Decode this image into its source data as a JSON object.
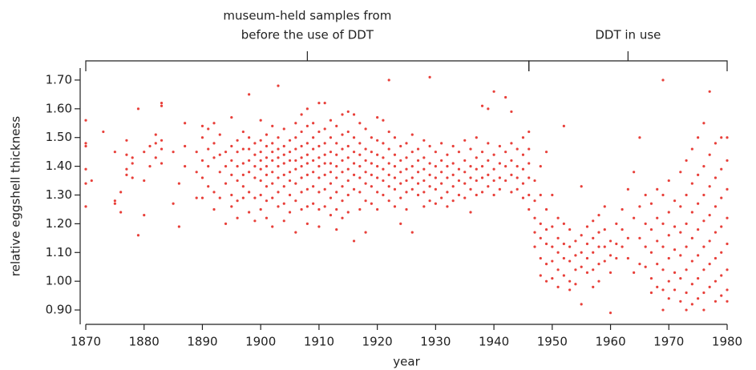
{
  "chart_data": {
    "type": "scatter",
    "xlabel": "year",
    "ylabel": "relative eggshell thickness",
    "color": "#e8403a",
    "xlim": [
      1870,
      1980
    ],
    "xticks": [
      1870,
      1880,
      1890,
      1900,
      1910,
      1920,
      1930,
      1940,
      1950,
      1960,
      1970,
      1980
    ],
    "ylim": [
      0.85,
      1.75
    ],
    "yticks": [
      {
        "value": 0.9,
        "label": "0.90"
      },
      {
        "value": 1.0,
        "label": "1.00"
      },
      {
        "value": 1.1,
        "label": "1.10"
      },
      {
        "value": 1.2,
        "label": "1.20"
      },
      {
        "value": 1.3,
        "label": "1.30"
      },
      {
        "value": 1.4,
        "label": "1.40"
      },
      {
        "value": 1.5,
        "label": "1.50"
      },
      {
        "value": 1.6,
        "label": "1.60"
      },
      {
        "value": 1.7,
        "label": "1.70"
      }
    ],
    "annotations": [
      {
        "lines": [
          "museum-held samples from",
          "before the use of DDT"
        ],
        "x_range": [
          1870,
          1946
        ]
      },
      {
        "lines": [
          "DDT in use"
        ],
        "x_range": [
          1946,
          1980
        ]
      }
    ],
    "x": [
      1870,
      1871,
      1873,
      1875,
      1876,
      1877,
      1878,
      1879,
      1880,
      1881,
      1882,
      1883,
      1885,
      1886,
      1887,
      1889,
      1890,
      1891,
      1892,
      1893,
      1894,
      1895,
      1896,
      1897,
      1898,
      1899,
      1900,
      1901,
      1902,
      1903,
      1904,
      1905,
      1906,
      1907,
      1908,
      1909,
      1910,
      1911,
      1912,
      1913,
      1914,
      1915,
      1916,
      1917,
      1918,
      1919,
      1920,
      1921,
      1922,
      1923,
      1924,
      1925,
      1926,
      1927,
      1928,
      1929,
      1930,
      1931,
      1932,
      1933,
      1934,
      1935,
      1936,
      1937,
      1938,
      1939,
      1940,
      1941,
      1942,
      1943,
      1944,
      1945,
      1946,
      1947,
      1948,
      1949,
      1950,
      1951,
      1952,
      1953,
      1954,
      1955,
      1956,
      1957,
      1958,
      1959,
      1960,
      1961,
      1962,
      1963,
      1964,
      1965,
      1966,
      1967,
      1968,
      1969,
      1970,
      1971,
      1972,
      1973,
      1974,
      1975,
      1976,
      1977,
      1978,
      1979,
      1980
    ],
    "values": [
      [
        1.56,
        1.48,
        1.47,
        1.39,
        1.34,
        1.26
      ],
      [
        1.35
      ],
      [
        1.52
      ],
      [
        1.45,
        1.28,
        1.27
      ],
      [
        1.31,
        1.24
      ],
      [
        1.49,
        1.44,
        1.39,
        1.37
      ],
      [
        1.43,
        1.41,
        1.36
      ],
      [
        1.6,
        1.16
      ],
      [
        1.45,
        1.35,
        1.23
      ],
      [
        1.47,
        1.4
      ],
      [
        1.51,
        1.48,
        1.43
      ],
      [
        1.62,
        1.61,
        1.49,
        1.46,
        1.41
      ],
      [
        1.45,
        1.27
      ],
      [
        1.34,
        1.19
      ],
      [
        1.55,
        1.47,
        1.4
      ],
      [
        1.45,
        1.38,
        1.29
      ],
      [
        1.54,
        1.5,
        1.42,
        1.36,
        1.29
      ],
      [
        1.53,
        1.46,
        1.4,
        1.33
      ],
      [
        1.55,
        1.48,
        1.43,
        1.31,
        1.25
      ],
      [
        1.51,
        1.44,
        1.38,
        1.29
      ],
      [
        1.45,
        1.4,
        1.34,
        1.2
      ],
      [
        1.57,
        1.47,
        1.42,
        1.37,
        1.3,
        1.26
      ],
      [
        1.49,
        1.45,
        1.4,
        1.35,
        1.28,
        1.22
      ],
      [
        1.52,
        1.46,
        1.41,
        1.37,
        1.33,
        1.29
      ],
      [
        1.65,
        1.5,
        1.46,
        1.42,
        1.38,
        1.31,
        1.24
      ],
      [
        1.48,
        1.44,
        1.4,
        1.36,
        1.29,
        1.21
      ],
      [
        1.56,
        1.49,
        1.45,
        1.42,
        1.39,
        1.35,
        1.3,
        1.25
      ],
      [
        1.51,
        1.47,
        1.43,
        1.4,
        1.37,
        1.33,
        1.28,
        1.22
      ],
      [
        1.54,
        1.48,
        1.45,
        1.42,
        1.38,
        1.34,
        1.29,
        1.19
      ],
      [
        1.68,
        1.5,
        1.46,
        1.43,
        1.4,
        1.36,
        1.31,
        1.26
      ],
      [
        1.53,
        1.47,
        1.44,
        1.41,
        1.37,
        1.33,
        1.27,
        1.21
      ],
      [
        1.49,
        1.45,
        1.42,
        1.38,
        1.35,
        1.3,
        1.24
      ],
      [
        1.55,
        1.5,
        1.46,
        1.42,
        1.39,
        1.34,
        1.28,
        1.17
      ],
      [
        1.58,
        1.52,
        1.47,
        1.43,
        1.4,
        1.36,
        1.31,
        1.25
      ],
      [
        1.6,
        1.54,
        1.48,
        1.44,
        1.41,
        1.37,
        1.32,
        1.26,
        1.2
      ],
      [
        1.55,
        1.5,
        1.46,
        1.42,
        1.38,
        1.33,
        1.27
      ],
      [
        1.62,
        1.52,
        1.47,
        1.43,
        1.4,
        1.36,
        1.31,
        1.25,
        1.19
      ],
      [
        1.62,
        1.53,
        1.48,
        1.44,
        1.41,
        1.37,
        1.32,
        1.26
      ],
      [
        1.56,
        1.5,
        1.45,
        1.41,
        1.38,
        1.34,
        1.29,
        1.23
      ],
      [
        1.54,
        1.48,
        1.44,
        1.4,
        1.36,
        1.31,
        1.25,
        1.18
      ],
      [
        1.58,
        1.51,
        1.46,
        1.42,
        1.38,
        1.33,
        1.28,
        1.22
      ],
      [
        1.59,
        1.52,
        1.47,
        1.43,
        1.39,
        1.35,
        1.3,
        1.24
      ],
      [
        1.58,
        1.5,
        1.45,
        1.41,
        1.37,
        1.32,
        1.14
      ],
      [
        1.55,
        1.48,
        1.44,
        1.4,
        1.36,
        1.31,
        1.25
      ],
      [
        1.53,
        1.46,
        1.42,
        1.38,
        1.34,
        1.28,
        1.17
      ],
      [
        1.5,
        1.45,
        1.41,
        1.37,
        1.33,
        1.27
      ],
      [
        1.57,
        1.49,
        1.44,
        1.4,
        1.36,
        1.31,
        1.25
      ],
      [
        1.56,
        1.48,
        1.43,
        1.39,
        1.35,
        1.3
      ],
      [
        1.7,
        1.52,
        1.46,
        1.41,
        1.37,
        1.33,
        1.28
      ],
      [
        1.5,
        1.44,
        1.4,
        1.36,
        1.32,
        1.26
      ],
      [
        1.47,
        1.42,
        1.38,
        1.34,
        1.29,
        1.2
      ],
      [
        1.48,
        1.43,
        1.39,
        1.35,
        1.31,
        1.25
      ],
      [
        1.51,
        1.45,
        1.4,
        1.36,
        1.32,
        1.17
      ],
      [
        1.46,
        1.42,
        1.38,
        1.34,
        1.3
      ],
      [
        1.49,
        1.43,
        1.39,
        1.35,
        1.31,
        1.26
      ],
      [
        1.71,
        1.47,
        1.41,
        1.37,
        1.33,
        1.28
      ],
      [
        1.45,
        1.4,
        1.36,
        1.32,
        1.27
      ],
      [
        1.48,
        1.42,
        1.38,
        1.34,
        1.29
      ],
      [
        1.44,
        1.4,
        1.36,
        1.31,
        1.26
      ],
      [
        1.47,
        1.41,
        1.37,
        1.33,
        1.28
      ],
      [
        1.45,
        1.39,
        1.35,
        1.3
      ],
      [
        1.49,
        1.42,
        1.38,
        1.34,
        1.29
      ],
      [
        1.46,
        1.4,
        1.36,
        1.32,
        1.24
      ],
      [
        1.5,
        1.43,
        1.39,
        1.35,
        1.3
      ],
      [
        1.61,
        1.45,
        1.4,
        1.36,
        1.31
      ],
      [
        1.6,
        1.48,
        1.42,
        1.37,
        1.33
      ],
      [
        1.66,
        1.44,
        1.39,
        1.35,
        1.3
      ],
      [
        1.47,
        1.41,
        1.36,
        1.32
      ],
      [
        1.64,
        1.45,
        1.4,
        1.35
      ],
      [
        1.59,
        1.48,
        1.42,
        1.37,
        1.31
      ],
      [
        1.46,
        1.4,
        1.36,
        1.32
      ],
      [
        1.5,
        1.44,
        1.39,
        1.34,
        1.29
      ],
      [
        1.52,
        1.46,
        1.41,
        1.36,
        1.3,
        1.25
      ],
      [
        1.35,
        1.28,
        1.22,
        1.17,
        1.12
      ],
      [
        1.4,
        1.3,
        1.2,
        1.15,
        1.08,
        1.02
      ],
      [
        1.45,
        1.25,
        1.18,
        1.13,
        1.06,
        1.0
      ],
      [
        1.3,
        1.19,
        1.12,
        1.07,
        1.01
      ],
      [
        1.22,
        1.15,
        1.1,
        1.04,
        0.98
      ],
      [
        1.54,
        1.2,
        1.13,
        1.08,
        1.02
      ],
      [
        1.18,
        1.12,
        1.07,
        1.0,
        0.97
      ],
      [
        1.14,
        1.09,
        1.04,
        0.99
      ],
      [
        1.33,
        1.16,
        1.1,
        1.05,
        0.92
      ],
      [
        1.19,
        1.13,
        1.08,
        1.03
      ],
      [
        1.21,
        1.15,
        1.1,
        1.04,
        0.98
      ],
      [
        1.23,
        1.17,
        1.12,
        1.06,
        1.0
      ],
      [
        1.26,
        1.18,
        1.12,
        1.07
      ],
      [
        1.14,
        1.09,
        1.03,
        0.89
      ],
      [
        1.2,
        1.13,
        1.08
      ],
      [
        1.25,
        1.18,
        1.12
      ],
      [
        1.32,
        1.15,
        1.08
      ],
      [
        1.38,
        1.22,
        1.03
      ],
      [
        1.5,
        1.26,
        1.15,
        1.06
      ],
      [
        1.3,
        1.2,
        1.12,
        1.05
      ],
      [
        1.27,
        1.18,
        1.1,
        1.01,
        0.96
      ],
      [
        1.32,
        1.22,
        1.14,
        1.06,
        0.98
      ],
      [
        1.7,
        1.3,
        1.2,
        1.12,
        1.04,
        0.97,
        0.9
      ],
      [
        1.35,
        1.24,
        1.16,
        1.08,
        1.0,
        0.94
      ],
      [
        1.28,
        1.19,
        1.11,
        1.03,
        0.97
      ],
      [
        1.38,
        1.26,
        1.17,
        1.09,
        1.01,
        0.93
      ],
      [
        1.42,
        1.3,
        1.2,
        1.12,
        1.04,
        0.96,
        0.9
      ],
      [
        1.46,
        1.34,
        1.24,
        1.15,
        1.07,
        0.99,
        0.92
      ],
      [
        1.5,
        1.37,
        1.27,
        1.18,
        1.09,
        1.01,
        0.94
      ],
      [
        1.55,
        1.4,
        1.3,
        1.21,
        1.12,
        1.04,
        0.96,
        0.9
      ],
      [
        1.66,
        1.44,
        1.33,
        1.23,
        1.14,
        1.06,
        0.98
      ],
      [
        1.48,
        1.36,
        1.26,
        1.17,
        1.08,
        1.0,
        0.93
      ],
      [
        1.5,
        1.39,
        1.29,
        1.19,
        1.1,
        1.02,
        0.95
      ],
      [
        1.5,
        1.42,
        1.32,
        1.22,
        1.13,
        1.04,
        0.97,
        0.93
      ]
    ]
  }
}
